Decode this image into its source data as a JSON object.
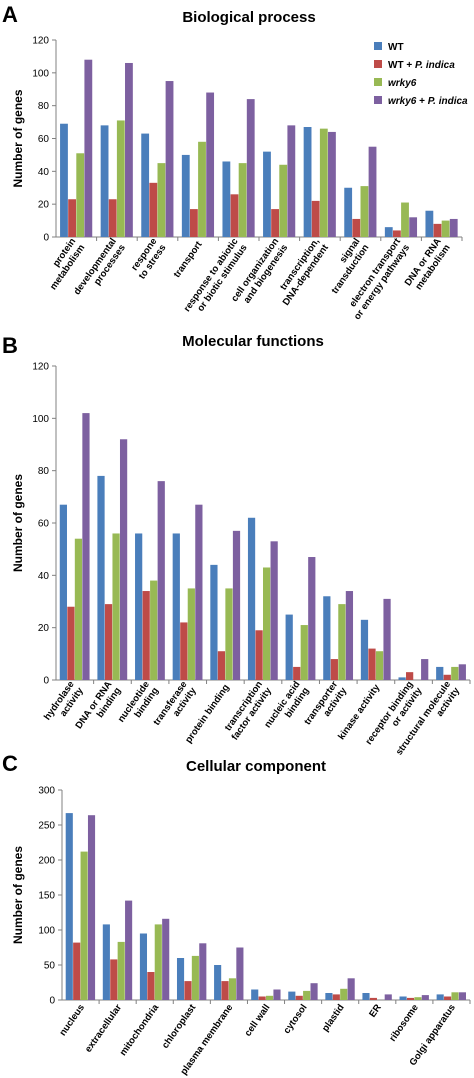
{
  "colors": {
    "WT": "#4a7ebb",
    "WT_Pindica": "#be4b48",
    "wrky6": "#98b954",
    "wrky6_Pindica": "#7d60a0",
    "axis": "#808080",
    "text": "#000000"
  },
  "legend": [
    {
      "key": "WT",
      "parts": [
        {
          "text": "WT",
          "italic": false
        }
      ]
    },
    {
      "key": "WT_Pindica",
      "parts": [
        {
          "text": "WT + ",
          "italic": false
        },
        {
          "text": "P. indica",
          "italic": true
        }
      ]
    },
    {
      "key": "wrky6",
      "parts": [
        {
          "text": "wrky6",
          "italic": true
        }
      ]
    },
    {
      "key": "wrky6_Pindica",
      "parts": [
        {
          "text": "wrky6",
          "italic": true
        },
        {
          "text": " + ",
          "italic": false
        },
        {
          "text": "P. indica",
          "italic": true
        }
      ]
    }
  ],
  "chart_data": [
    {
      "panel_letter": "A",
      "type": "bar",
      "title": "Biological process",
      "ylabel": "Number of genes",
      "ylim": [
        0,
        120
      ],
      "yticks": [
        0,
        20,
        40,
        60,
        80,
        100,
        120
      ],
      "grid": false,
      "legend_position": "top-right",
      "categories": [
        [
          "protein",
          "metabolism"
        ],
        [
          "developmental",
          "processes"
        ],
        [
          "respone",
          "to stress"
        ],
        [
          "transport"
        ],
        [
          "response to abiotic",
          "or biotic stimulus"
        ],
        [
          "cell organization",
          "and biogenesis"
        ],
        [
          "transcription,",
          "DNA-dependent"
        ],
        [
          "signal",
          "transduction"
        ],
        [
          "electron transport",
          "or energy pathways"
        ],
        [
          "DNA or RNA",
          "metabolism"
        ]
      ],
      "series": [
        {
          "name": "WT",
          "values": [
            69,
            68,
            63,
            50,
            46,
            52,
            67,
            30,
            6,
            16
          ]
        },
        {
          "name": "WT + P. indica",
          "values": [
            23,
            23,
            33,
            17,
            26,
            17,
            22,
            11,
            4,
            8
          ]
        },
        {
          "name": "wrky6",
          "values": [
            51,
            71,
            45,
            58,
            45,
            44,
            66,
            31,
            21,
            10
          ]
        },
        {
          "name": "wrky6 + P. indica",
          "values": [
            108,
            106,
            95,
            88,
            84,
            68,
            64,
            55,
            12,
            11
          ]
        }
      ]
    },
    {
      "panel_letter": "B",
      "type": "bar",
      "title": "Molecular functions",
      "ylabel": "Number of genes",
      "ylim": [
        0,
        120
      ],
      "yticks": [
        0,
        20,
        40,
        60,
        80,
        100,
        120
      ],
      "grid": false,
      "categories": [
        [
          "hydrolase",
          "activity"
        ],
        [
          "DNA or RNA",
          "binding"
        ],
        [
          "nucleotide",
          "binding"
        ],
        [
          "transferase",
          "activity"
        ],
        [
          "protein binding"
        ],
        [
          "transcription",
          "factor activity"
        ],
        [
          "nucleic acid",
          "binding"
        ],
        [
          "transporter",
          "activity"
        ],
        [
          "kinase activity"
        ],
        [
          "receptor binding",
          "or activity"
        ],
        [
          "structural molecule",
          "activity"
        ]
      ],
      "series": [
        {
          "name": "WT",
          "values": [
            67,
            78,
            56,
            56,
            44,
            62,
            25,
            32,
            23,
            1,
            5
          ]
        },
        {
          "name": "WT + P. indica",
          "values": [
            28,
            29,
            34,
            22,
            11,
            19,
            5,
            8,
            12,
            3,
            2
          ]
        },
        {
          "name": "wrky6",
          "values": [
            54,
            56,
            38,
            35,
            35,
            43,
            21,
            29,
            11,
            0,
            5
          ]
        },
        {
          "name": "wrky6 + P. indica",
          "values": [
            102,
            92,
            76,
            67,
            57,
            53,
            47,
            34,
            31,
            8,
            6
          ]
        }
      ]
    },
    {
      "panel_letter": "C",
      "type": "bar",
      "title": "Cellular component",
      "ylabel": "Number of genes",
      "ylim": [
        0,
        300
      ],
      "yticks": [
        0,
        50,
        100,
        150,
        200,
        250,
        300
      ],
      "grid": false,
      "categories": [
        [
          "nucleus"
        ],
        [
          "extracellular"
        ],
        [
          "mitochondria"
        ],
        [
          "chloroplast"
        ],
        [
          "plasma membrane"
        ],
        [
          "cell wall"
        ],
        [
          "cytosol"
        ],
        [
          "plastid"
        ],
        [
          "ER"
        ],
        [
          "ribosome"
        ],
        [
          "Golgi apparatus"
        ]
      ],
      "series": [
        {
          "name": "WT",
          "values": [
            267,
            108,
            95,
            60,
            50,
            15,
            12,
            10,
            10,
            5,
            8
          ]
        },
        {
          "name": "WT + P. indica",
          "values": [
            82,
            58,
            40,
            27,
            27,
            5,
            6,
            8,
            3,
            3,
            5
          ]
        },
        {
          "name": "wrky6",
          "values": [
            212,
            83,
            108,
            63,
            31,
            6,
            13,
            16,
            0,
            4,
            11
          ]
        },
        {
          "name": "wrky6 + P. indica",
          "values": [
            264,
            142,
            116,
            81,
            75,
            15,
            24,
            31,
            8,
            7,
            11
          ]
        }
      ]
    }
  ]
}
